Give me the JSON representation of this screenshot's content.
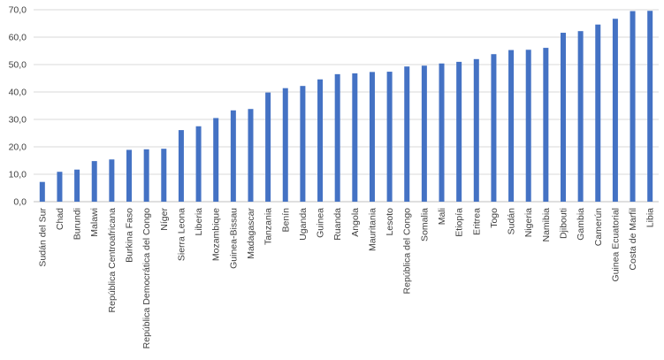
{
  "colors": {
    "bar": "#4472c4",
    "grid": "#d9d9d9",
    "text": "#404040"
  },
  "chart_data": {
    "type": "bar",
    "title": "",
    "xlabel": "",
    "ylabel": "",
    "ylim": [
      0,
      70
    ],
    "yticks": [
      0,
      10,
      20,
      30,
      40,
      50,
      60,
      70
    ],
    "ytick_labels": [
      "0,0",
      "10,0",
      "20,0",
      "30,0",
      "40,0",
      "50,0",
      "60,0",
      "70,0"
    ],
    "grid": "horizontal",
    "legend": "none",
    "categories": [
      "Sudán del Sur",
      "Chad",
      "Burundi",
      "Malawi",
      "República Centroafricana",
      "Burkina Faso",
      "República Democrática del Congo",
      "Níger",
      "Sierra Leona",
      "Liberia",
      "Mozambique",
      "Guinea-Bissau",
      "Madagascar",
      "Tanzania",
      "Benín",
      "Uganda",
      "Guinea",
      "Ruanda",
      "Angola",
      "Mauritania",
      "Lesoto",
      "República del Congo",
      "Somalia",
      "Mali",
      "Etiopía",
      "Eritrea",
      "Togo",
      "Sudán",
      "Nigeria",
      "Namibia",
      "Djibouti",
      "Gambia",
      "Camerún",
      "Guinea Ecuatorial",
      "Costa de Marfil",
      "Libia"
    ],
    "values": [
      7.2,
      10.9,
      11.7,
      14.8,
      15.4,
      18.9,
      19.1,
      19.3,
      26.1,
      27.5,
      30.5,
      33.3,
      33.8,
      39.8,
      41.4,
      42.2,
      44.6,
      46.5,
      46.8,
      47.3,
      47.4,
      49.3,
      49.6,
      50.4,
      51.0,
      52.0,
      53.8,
      55.3,
      55.4,
      56.1,
      61.6,
      62.2,
      64.6,
      66.7,
      69.5,
      69.6
    ]
  }
}
